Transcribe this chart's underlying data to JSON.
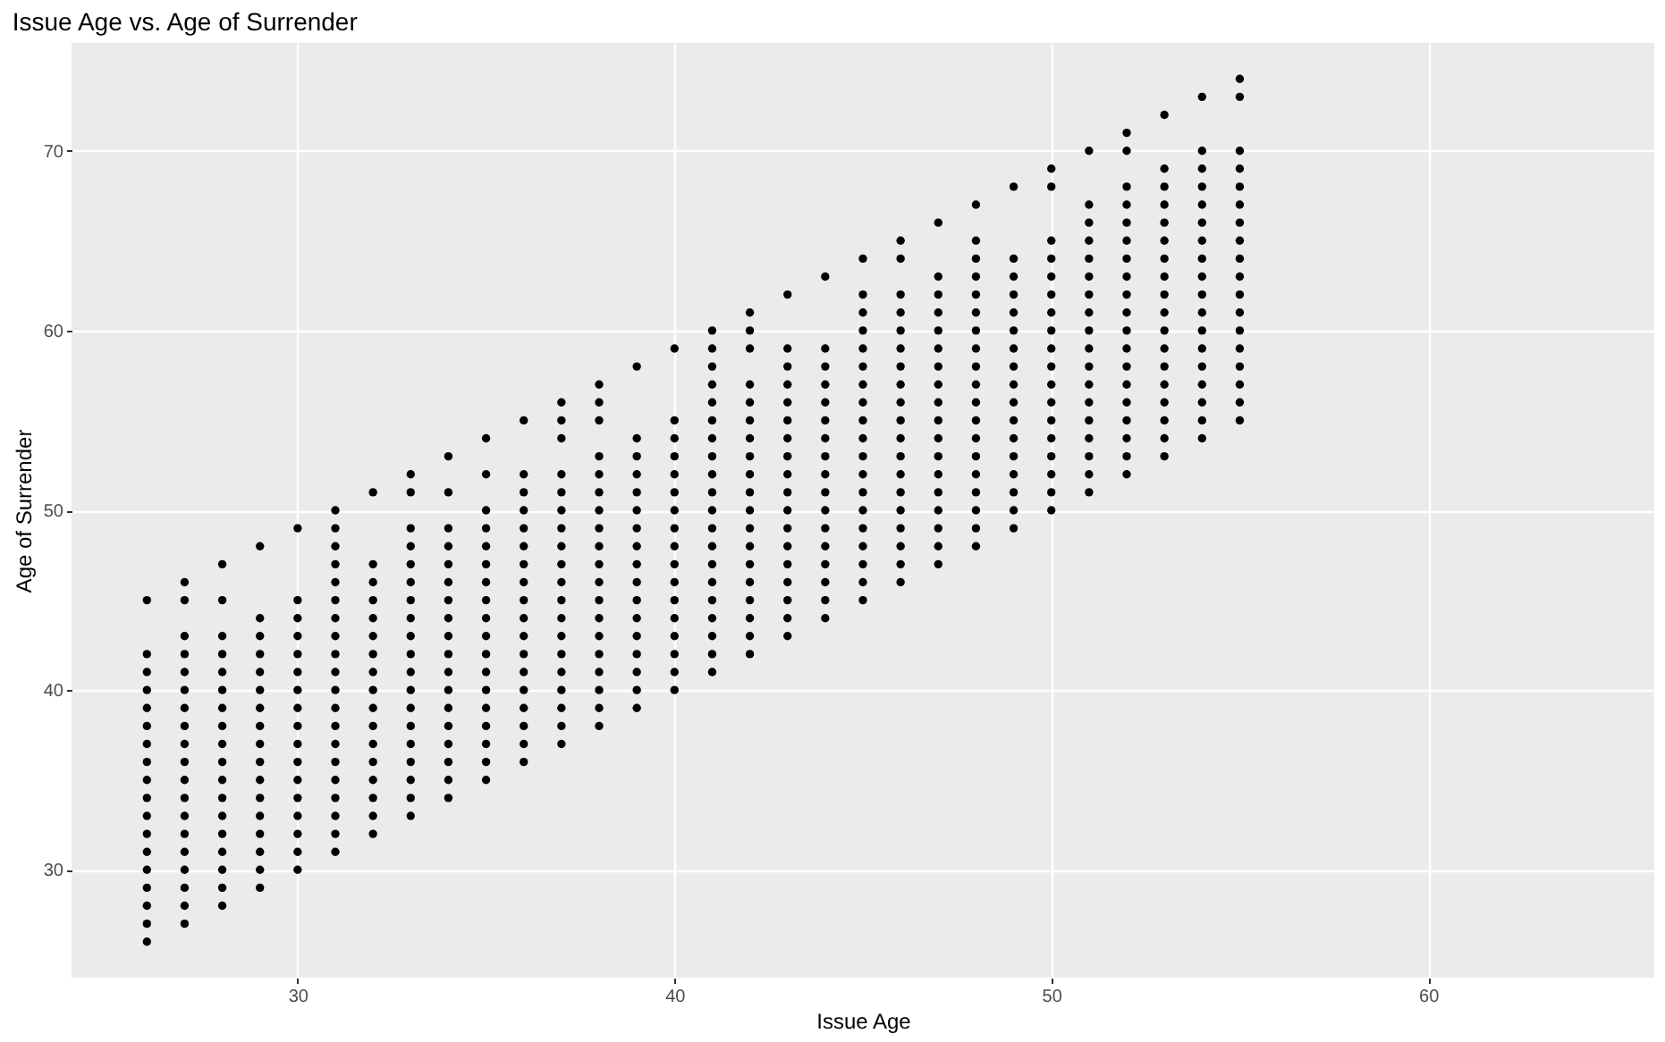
{
  "chart_data": {
    "type": "scatter",
    "title": "Issue Age vs. Age of Surrender",
    "xlabel": "Issue Age",
    "ylabel": "Age of Surrender",
    "xlim": [
      24,
      66
    ],
    "ylim": [
      24,
      76
    ],
    "xticks": [
      30,
      40,
      50,
      60
    ],
    "yticks": [
      30,
      40,
      50,
      60,
      70
    ],
    "grid": true,
    "legend": false,
    "marker": "circle",
    "series": [
      {
        "color": "#000000",
        "x": [
          26,
          26,
          26,
          26,
          26,
          26,
          26,
          26,
          26,
          26,
          26,
          26,
          26,
          26,
          26,
          26,
          26,
          26
        ],
        "values": [
          26,
          27,
          28,
          29,
          30,
          31,
          32,
          33,
          34,
          35,
          36,
          37,
          38,
          39,
          40,
          41,
          42,
          45
        ]
      },
      {
        "color": "#000000",
        "x": [
          27,
          27,
          27,
          27,
          27,
          27,
          27,
          27,
          27,
          27,
          27,
          27,
          27,
          27,
          27,
          27,
          27,
          27,
          27
        ],
        "values": [
          27,
          28,
          29,
          30,
          31,
          32,
          33,
          34,
          35,
          36,
          37,
          38,
          39,
          40,
          41,
          42,
          43,
          45,
          46
        ]
      },
      {
        "color": "#000000",
        "x": [
          28,
          28,
          28,
          28,
          28,
          28,
          28,
          28,
          28,
          28,
          28,
          28,
          28,
          28,
          28,
          28,
          28,
          28
        ],
        "values": [
          28,
          29,
          30,
          31,
          32,
          33,
          34,
          35,
          36,
          37,
          38,
          39,
          40,
          41,
          42,
          43,
          45,
          47
        ]
      },
      {
        "color": "#000000",
        "x": [
          29,
          29,
          29,
          29,
          29,
          29,
          29,
          29,
          29,
          29,
          29,
          29,
          29,
          29,
          29,
          29,
          29
        ],
        "values": [
          29,
          30,
          31,
          32,
          33,
          34,
          35,
          36,
          37,
          38,
          39,
          40,
          41,
          42,
          43,
          44,
          48
        ]
      },
      {
        "color": "#000000",
        "x": [
          30,
          30,
          30,
          30,
          30,
          30,
          30,
          30,
          30,
          30,
          30,
          30,
          30,
          30,
          30,
          30,
          30
        ],
        "values": [
          30,
          31,
          32,
          33,
          34,
          35,
          36,
          37,
          38,
          39,
          40,
          41,
          42,
          43,
          44,
          45,
          49
        ]
      },
      {
        "color": "#000000",
        "x": [
          31,
          31,
          31,
          31,
          31,
          31,
          31,
          31,
          31,
          31,
          31,
          31,
          31,
          31,
          31,
          31,
          31,
          31,
          31,
          31
        ],
        "values": [
          31,
          32,
          33,
          34,
          35,
          36,
          37,
          38,
          39,
          40,
          41,
          42,
          43,
          44,
          45,
          46,
          47,
          48,
          49,
          50
        ]
      },
      {
        "color": "#000000",
        "x": [
          32,
          32,
          32,
          32,
          32,
          32,
          32,
          32,
          32,
          32,
          32,
          32,
          32,
          32,
          32,
          32,
          32
        ],
        "values": [
          32,
          33,
          34,
          35,
          36,
          37,
          38,
          39,
          40,
          41,
          42,
          43,
          44,
          45,
          46,
          47,
          51
        ]
      },
      {
        "color": "#000000",
        "x": [
          33,
          33,
          33,
          33,
          33,
          33,
          33,
          33,
          33,
          33,
          33,
          33,
          33,
          33,
          33,
          33,
          33,
          33,
          33
        ],
        "values": [
          33,
          34,
          35,
          36,
          37,
          38,
          39,
          40,
          41,
          42,
          43,
          44,
          45,
          46,
          47,
          48,
          49,
          51,
          52
        ]
      },
      {
        "color": "#000000",
        "x": [
          34,
          34,
          34,
          34,
          34,
          34,
          34,
          34,
          34,
          34,
          34,
          34,
          34,
          34,
          34,
          34,
          34,
          34
        ],
        "values": [
          34,
          35,
          36,
          37,
          38,
          39,
          40,
          41,
          42,
          43,
          44,
          45,
          46,
          47,
          48,
          49,
          51,
          53
        ]
      },
      {
        "color": "#000000",
        "x": [
          35,
          35,
          35,
          35,
          35,
          35,
          35,
          35,
          35,
          35,
          35,
          35,
          35,
          35,
          35,
          35,
          35,
          35
        ],
        "values": [
          35,
          36,
          37,
          38,
          39,
          40,
          41,
          42,
          43,
          44,
          45,
          46,
          47,
          48,
          49,
          50,
          52,
          54
        ]
      },
      {
        "color": "#000000",
        "x": [
          36,
          36,
          36,
          36,
          36,
          36,
          36,
          36,
          36,
          36,
          36,
          36,
          36,
          36,
          36,
          36,
          36,
          36
        ],
        "values": [
          36,
          37,
          38,
          39,
          40,
          41,
          42,
          43,
          44,
          45,
          46,
          47,
          48,
          49,
          50,
          51,
          52,
          55
        ]
      },
      {
        "color": "#000000",
        "x": [
          37,
          37,
          37,
          37,
          37,
          37,
          37,
          37,
          37,
          37,
          37,
          37,
          37,
          37,
          37,
          37,
          37,
          37,
          37
        ],
        "values": [
          37,
          38,
          39,
          40,
          41,
          42,
          43,
          44,
          45,
          46,
          47,
          48,
          49,
          50,
          51,
          52,
          54,
          55,
          56
        ]
      },
      {
        "color": "#000000",
        "x": [
          38,
          38,
          38,
          38,
          38,
          38,
          38,
          38,
          38,
          38,
          38,
          38,
          38,
          38,
          38,
          38,
          38,
          38,
          38
        ],
        "values": [
          38,
          39,
          40,
          41,
          42,
          43,
          44,
          45,
          46,
          47,
          48,
          49,
          50,
          51,
          52,
          53,
          55,
          56,
          57
        ]
      },
      {
        "color": "#000000",
        "x": [
          39,
          39,
          39,
          39,
          39,
          39,
          39,
          39,
          39,
          39,
          39,
          39,
          39,
          39,
          39,
          39,
          39
        ],
        "values": [
          39,
          40,
          41,
          42,
          43,
          44,
          45,
          46,
          47,
          48,
          49,
          50,
          51,
          52,
          53,
          54,
          58
        ]
      },
      {
        "color": "#000000",
        "x": [
          40,
          40,
          40,
          40,
          40,
          40,
          40,
          40,
          40,
          40,
          40,
          40,
          40,
          40,
          40,
          40,
          40
        ],
        "values": [
          40,
          41,
          42,
          43,
          44,
          45,
          46,
          47,
          48,
          49,
          50,
          51,
          52,
          53,
          54,
          55,
          59
        ]
      },
      {
        "color": "#000000",
        "x": [
          41,
          41,
          41,
          41,
          41,
          41,
          41,
          41,
          41,
          41,
          41,
          41,
          41,
          41,
          41,
          41,
          41,
          41,
          41,
          41
        ],
        "values": [
          41,
          42,
          43,
          44,
          45,
          46,
          47,
          48,
          49,
          50,
          51,
          52,
          53,
          54,
          55,
          56,
          57,
          58,
          59,
          60
        ]
      },
      {
        "color": "#000000",
        "x": [
          42,
          42,
          42,
          42,
          42,
          42,
          42,
          42,
          42,
          42,
          42,
          42,
          42,
          42,
          42,
          42,
          42,
          42,
          42
        ],
        "values": [
          42,
          43,
          44,
          45,
          46,
          47,
          48,
          49,
          50,
          51,
          52,
          53,
          54,
          55,
          56,
          57,
          59,
          60,
          61
        ]
      },
      {
        "color": "#000000",
        "x": [
          43,
          43,
          43,
          43,
          43,
          43,
          43,
          43,
          43,
          43,
          43,
          43,
          43,
          43,
          43,
          43,
          43,
          43
        ],
        "values": [
          43,
          44,
          45,
          46,
          47,
          48,
          49,
          50,
          51,
          52,
          53,
          54,
          55,
          56,
          57,
          58,
          59,
          62
        ]
      },
      {
        "color": "#000000",
        "x": [
          44,
          44,
          44,
          44,
          44,
          44,
          44,
          44,
          44,
          44,
          44,
          44,
          44,
          44,
          44,
          44,
          44
        ],
        "values": [
          44,
          45,
          46,
          47,
          48,
          49,
          50,
          51,
          52,
          53,
          54,
          55,
          56,
          57,
          58,
          59,
          63
        ]
      },
      {
        "color": "#000000",
        "x": [
          45,
          45,
          45,
          45,
          45,
          45,
          45,
          45,
          45,
          45,
          45,
          45,
          45,
          45,
          45,
          45,
          45,
          45,
          45
        ],
        "values": [
          45,
          46,
          47,
          48,
          49,
          50,
          51,
          52,
          53,
          54,
          55,
          56,
          57,
          58,
          59,
          60,
          61,
          62,
          64
        ]
      },
      {
        "color": "#000000",
        "x": [
          46,
          46,
          46,
          46,
          46,
          46,
          46,
          46,
          46,
          46,
          46,
          46,
          46,
          46,
          46,
          46,
          46,
          46,
          46
        ],
        "values": [
          46,
          47,
          48,
          49,
          50,
          51,
          52,
          53,
          54,
          55,
          56,
          57,
          58,
          59,
          60,
          61,
          62,
          64,
          65
        ]
      },
      {
        "color": "#000000",
        "x": [
          47,
          47,
          47,
          47,
          47,
          47,
          47,
          47,
          47,
          47,
          47,
          47,
          47,
          47,
          47,
          47,
          47,
          47
        ],
        "values": [
          47,
          48,
          49,
          50,
          51,
          52,
          53,
          54,
          55,
          56,
          57,
          58,
          59,
          60,
          61,
          62,
          63,
          66
        ]
      },
      {
        "color": "#000000",
        "x": [
          48,
          48,
          48,
          48,
          48,
          48,
          48,
          48,
          48,
          48,
          48,
          48,
          48,
          48,
          48,
          48,
          48,
          48,
          48
        ],
        "values": [
          48,
          49,
          50,
          51,
          52,
          53,
          54,
          55,
          56,
          57,
          58,
          59,
          60,
          61,
          62,
          63,
          64,
          65,
          67
        ]
      },
      {
        "color": "#000000",
        "x": [
          49,
          49,
          49,
          49,
          49,
          49,
          49,
          49,
          49,
          49,
          49,
          49,
          49,
          49,
          49,
          49,
          49
        ],
        "values": [
          49,
          50,
          51,
          52,
          53,
          54,
          55,
          56,
          57,
          58,
          59,
          60,
          61,
          62,
          63,
          64,
          68
        ]
      },
      {
        "color": "#000000",
        "x": [
          50,
          50,
          50,
          50,
          50,
          50,
          50,
          50,
          50,
          50,
          50,
          50,
          50,
          50,
          50,
          50,
          50,
          50
        ],
        "values": [
          50,
          51,
          52,
          53,
          54,
          55,
          56,
          57,
          58,
          59,
          60,
          61,
          62,
          63,
          64,
          65,
          68,
          69
        ]
      },
      {
        "color": "#000000",
        "x": [
          51,
          51,
          51,
          51,
          51,
          51,
          51,
          51,
          51,
          51,
          51,
          51,
          51,
          51,
          51,
          51,
          51,
          51
        ],
        "values": [
          51,
          52,
          53,
          54,
          55,
          56,
          57,
          58,
          59,
          60,
          61,
          62,
          63,
          64,
          65,
          66,
          67,
          70
        ]
      },
      {
        "color": "#000000",
        "x": [
          52,
          52,
          52,
          52,
          52,
          52,
          52,
          52,
          52,
          52,
          52,
          52,
          52,
          52,
          52,
          52,
          52,
          52,
          52
        ],
        "values": [
          52,
          53,
          54,
          55,
          56,
          57,
          58,
          59,
          60,
          61,
          62,
          63,
          64,
          65,
          66,
          67,
          68,
          70,
          71
        ]
      },
      {
        "color": "#000000",
        "x": [
          53,
          53,
          53,
          53,
          53,
          53,
          53,
          53,
          53,
          53,
          53,
          53,
          53,
          53,
          53,
          53,
          53,
          53
        ],
        "values": [
          53,
          54,
          55,
          56,
          57,
          58,
          59,
          60,
          61,
          62,
          63,
          64,
          65,
          66,
          67,
          68,
          69,
          72
        ]
      },
      {
        "color": "#000000",
        "x": [
          54,
          54,
          54,
          54,
          54,
          54,
          54,
          54,
          54,
          54,
          54,
          54,
          54,
          54,
          54,
          54,
          54,
          54
        ],
        "values": [
          54,
          55,
          56,
          57,
          58,
          59,
          60,
          61,
          62,
          63,
          64,
          65,
          66,
          67,
          68,
          69,
          70,
          73
        ]
      },
      {
        "color": "#000000",
        "x": [
          55,
          55,
          55,
          55,
          55,
          55,
          55,
          55,
          55,
          55,
          55,
          55,
          55,
          55,
          55,
          55,
          55,
          55
        ],
        "values": [
          55,
          56,
          57,
          58,
          59,
          60,
          61,
          62,
          63,
          64,
          65,
          66,
          67,
          68,
          69,
          70,
          73,
          74
        ]
      }
    ]
  }
}
